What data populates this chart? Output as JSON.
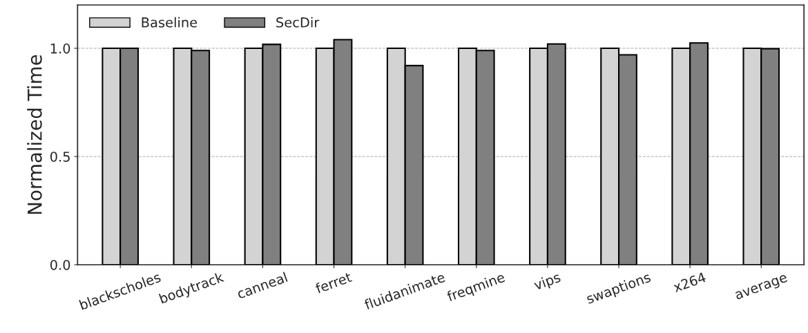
{
  "chart_data": {
    "type": "bar",
    "ylabel": "Normalized Time",
    "categories": [
      "blackscholes",
      "bodytrack",
      "canneal",
      "ferret",
      "fluidanimate",
      "freqmine",
      "vips",
      "swaptions",
      "x264",
      "average"
    ],
    "series": [
      {
        "name": "Baseline",
        "color": "#d3d3d3",
        "values": [
          1,
          1,
          1,
          1,
          1,
          1,
          1,
          1,
          1,
          1
        ]
      },
      {
        "name": "SecDir",
        "color": "#808080",
        "values": [
          1.0,
          0.99,
          1.018,
          1.04,
          0.92,
          0.99,
          1.02,
          0.97,
          1.025,
          0.998
        ]
      }
    ],
    "ylim": [
      0,
      1.2
    ],
    "yticks": [
      {
        "value": 0,
        "label": "0.0"
      },
      {
        "value": 0.5,
        "label": "0.5"
      },
      {
        "value": 1,
        "label": "1.0"
      }
    ],
    "grid": "y",
    "legend": "top left"
  }
}
